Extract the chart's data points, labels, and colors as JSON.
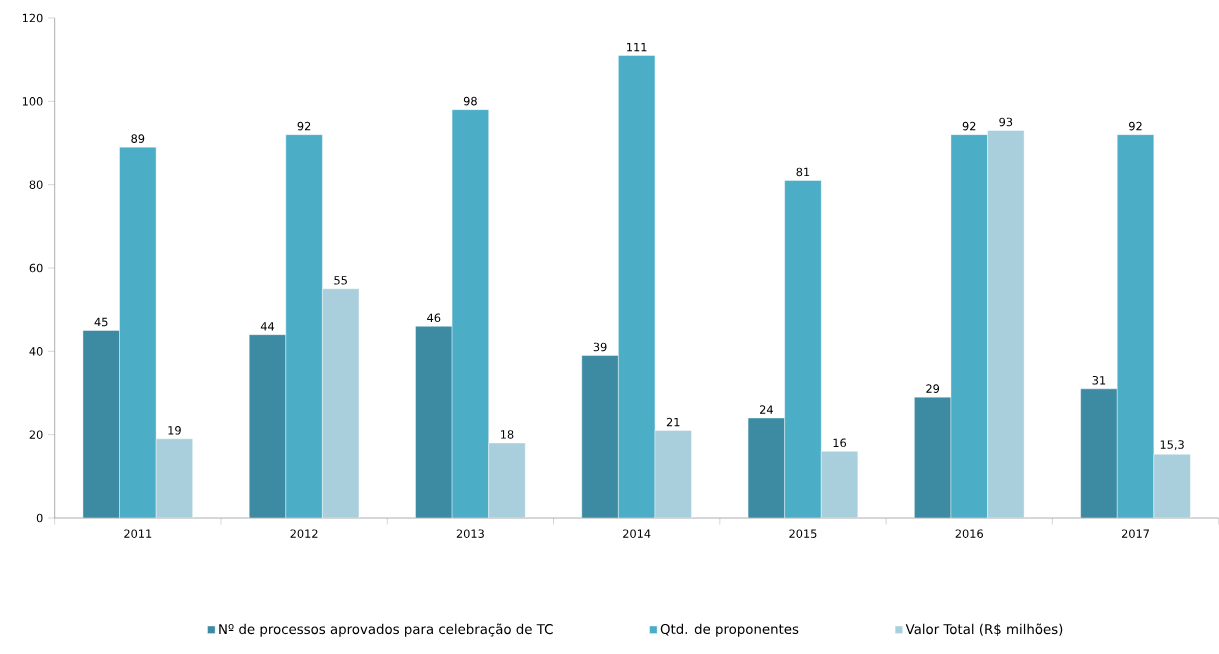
{
  "chart_data": {
    "type": "bar",
    "categories": [
      "2011",
      "2012",
      "2013",
      "2014",
      "2015",
      "2016",
      "2017"
    ],
    "series": [
      {
        "name": "Nº de processos aprovados para celebração de TC",
        "color": "#3d8ba3",
        "values": [
          45,
          44,
          46,
          39,
          24,
          29,
          31
        ],
        "value_labels": [
          "45",
          "44",
          "46",
          "39",
          "24",
          "29",
          "31"
        ]
      },
      {
        "name": "Qtd.  de proponentes",
        "color": "#4badc6",
        "values": [
          89,
          92,
          98,
          111,
          81,
          92,
          92
        ],
        "value_labels": [
          "89",
          "92",
          "98",
          "111",
          "81",
          "92",
          "92"
        ]
      },
      {
        "name": "Valor Total (R$ milhões)",
        "color": "#a9cfdc",
        "values": [
          19,
          55,
          18,
          21,
          16,
          93,
          15.3
        ],
        "value_labels": [
          "19",
          "55",
          "18",
          "21",
          "16",
          "93",
          "15,3"
        ]
      }
    ],
    "ylim": [
      0,
      120
    ],
    "yticks": [
      0,
      20,
      40,
      60,
      80,
      100,
      120
    ],
    "grid": false,
    "legend": "bottom"
  }
}
